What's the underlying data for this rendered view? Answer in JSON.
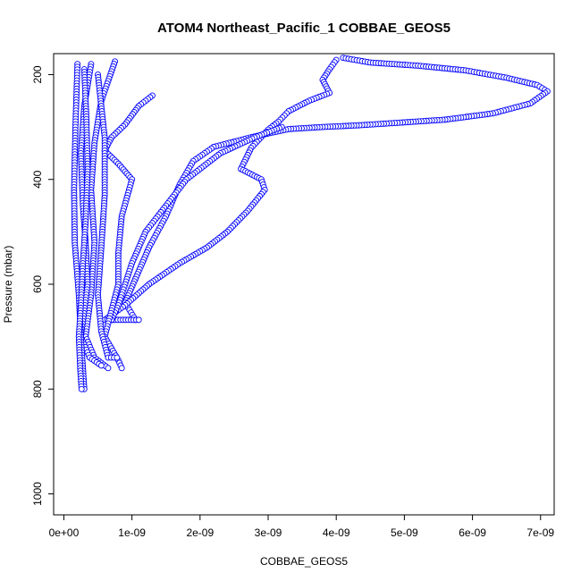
{
  "chart_data": {
    "type": "scatter",
    "title": "ATOM4 Northeast_Pacific_1 COBBAE_GEOS5",
    "xlabel": "COBBAE_GEOS5",
    "ylabel": "Pressure (mbar)",
    "xlim": [
      -1.5e-10,
      7.2e-09
    ],
    "ylim": [
      1040,
      160
    ],
    "y_reversed": true,
    "grid": false,
    "marker": "open-circle",
    "color": "#0000ff",
    "x_ticks": [
      {
        "value": 0,
        "label": "0e+00"
      },
      {
        "value": 1e-09,
        "label": "1e-09"
      },
      {
        "value": 2e-09,
        "label": "2e-09"
      },
      {
        "value": 3e-09,
        "label": "3e-09"
      },
      {
        "value": 4e-09,
        "label": "4e-09"
      },
      {
        "value": 5e-09,
        "label": "5e-09"
      },
      {
        "value": 6e-09,
        "label": "6e-09"
      },
      {
        "value": 7e-09,
        "label": "7e-09"
      }
    ],
    "y_ticks": [
      {
        "value": 200,
        "label": "200"
      },
      {
        "value": 400,
        "label": "400"
      },
      {
        "value": 600,
        "label": "600"
      },
      {
        "value": 800,
        "label": "800"
      },
      {
        "value": 1000,
        "label": "1000"
      }
    ],
    "series": [
      {
        "points": [
          [
            4.1e-09,
            168
          ],
          [
            4.5e-09,
            177
          ],
          [
            5.2e-09,
            183
          ],
          [
            5.9e-09,
            192
          ],
          [
            6.5e-09,
            206
          ],
          [
            6.95e-09,
            220
          ],
          [
            7.1e-09,
            232
          ],
          [
            6.85e-09,
            255
          ],
          [
            6.3e-09,
            274
          ],
          [
            5.6e-09,
            286
          ],
          [
            4.9e-09,
            292
          ],
          [
            4.3e-09,
            297
          ],
          [
            3.8e-09,
            300
          ],
          [
            3.3e-09,
            304
          ],
          [
            2.8e-09,
            318
          ],
          [
            2.2e-09,
            338
          ],
          [
            1.9e-09,
            365
          ],
          [
            1.7e-09,
            410
          ],
          [
            1.5e-09,
            470
          ],
          [
            1.25e-09,
            530
          ],
          [
            1.05e-09,
            590
          ],
          [
            9e-10,
            635
          ],
          [
            1.05e-09,
            668
          ]
        ]
      },
      {
        "points": [
          [
            4e-09,
            172
          ],
          [
            3.9e-09,
            190
          ],
          [
            3.8e-09,
            210
          ],
          [
            3.9e-09,
            235
          ],
          [
            3.6e-09,
            250
          ],
          [
            3.3e-09,
            270
          ],
          [
            3.15e-09,
            290
          ],
          [
            3e-09,
            305
          ],
          [
            2.75e-09,
            340
          ],
          [
            2.6e-09,
            380
          ],
          [
            2.9e-09,
            400
          ],
          [
            2.95e-09,
            420
          ],
          [
            2.7e-09,
            460
          ],
          [
            2.4e-09,
            500
          ],
          [
            2.1e-09,
            530
          ],
          [
            1.7e-09,
            560
          ],
          [
            1.25e-09,
            600
          ],
          [
            9e-10,
            640
          ],
          [
            6e-10,
            668
          ],
          [
            1.1e-09,
            668
          ]
        ]
      },
      {
        "points": [
          [
            3.2e-09,
            300
          ],
          [
            2.8e-09,
            320
          ],
          [
            2.3e-09,
            350
          ],
          [
            1.8e-09,
            400
          ],
          [
            1.5e-09,
            450
          ],
          [
            1.2e-09,
            500
          ],
          [
            1e-09,
            560
          ],
          [
            9e-10,
            600
          ],
          [
            8e-10,
            640
          ],
          [
            7e-10,
            668
          ]
        ]
      },
      {
        "points": [
          [
            1.3e-09,
            240
          ],
          [
            1.1e-09,
            260
          ],
          [
            9e-10,
            295
          ],
          [
            7e-10,
            320
          ],
          [
            6e-10,
            345
          ],
          [
            8e-10,
            370
          ],
          [
            1e-09,
            400
          ],
          [
            8.5e-10,
            470
          ],
          [
            8e-10,
            540
          ],
          [
            8e-10,
            600
          ],
          [
            7e-10,
            650
          ],
          [
            6e-10,
            700
          ],
          [
            8e-10,
            745
          ],
          [
            8.5e-10,
            760
          ]
        ]
      },
      {
        "points": [
          [
            7.5e-10,
            175
          ],
          [
            5.5e-10,
            250
          ],
          [
            4.5e-10,
            330
          ],
          [
            4e-10,
            420
          ],
          [
            4.5e-10,
            520
          ],
          [
            4e-10,
            620
          ],
          [
            3.2e-10,
            700
          ],
          [
            4.5e-10,
            740
          ],
          [
            6.5e-10,
            760
          ]
        ]
      },
      {
        "points": [
          [
            4e-10,
            180
          ],
          [
            3e-10,
            260
          ],
          [
            2.5e-10,
            350
          ],
          [
            2.8e-10,
            450
          ],
          [
            3.2e-10,
            520
          ],
          [
            3.5e-10,
            600
          ],
          [
            3e-10,
            650
          ],
          [
            2.5e-10,
            700
          ],
          [
            3.8e-10,
            740
          ],
          [
            5.5e-10,
            755
          ]
        ]
      },
      {
        "points": [
          [
            2e-10,
            180
          ],
          [
            1.7e-10,
            300
          ],
          [
            1.5e-10,
            420
          ],
          [
            1.6e-10,
            520
          ],
          [
            2.2e-10,
            620
          ],
          [
            2.5e-10,
            700
          ],
          [
            2.8e-10,
            760
          ],
          [
            3e-10,
            800
          ]
        ]
      },
      {
        "points": [
          [
            3e-10,
            190
          ],
          [
            3.3e-10,
            280
          ],
          [
            3.5e-10,
            380
          ],
          [
            3.2e-10,
            480
          ],
          [
            2.8e-10,
            560
          ],
          [
            2.5e-10,
            640
          ],
          [
            2.2e-10,
            700
          ],
          [
            2.4e-10,
            760
          ],
          [
            2.6e-10,
            800
          ]
        ]
      },
      {
        "points": [
          [
            5e-10,
            200
          ],
          [
            6e-10,
            320
          ],
          [
            6e-10,
            430
          ],
          [
            5.5e-10,
            530
          ],
          [
            5e-10,
            620
          ],
          [
            5.5e-10,
            690
          ],
          [
            6.5e-10,
            740
          ],
          [
            7.8e-10,
            740
          ]
        ]
      }
    ]
  }
}
